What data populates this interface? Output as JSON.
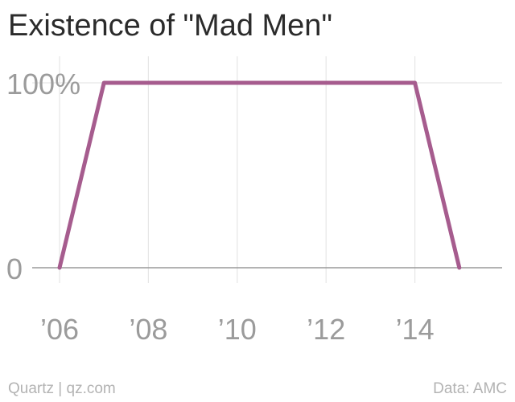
{
  "chart_data": {
    "type": "line",
    "title": "Existence of \"Mad Men\"",
    "xlabel": "",
    "ylabel": "",
    "x": [
      2006,
      2007,
      2014,
      2015
    ],
    "series": [
      {
        "values": [
          0,
          100,
          100,
          0
        ]
      }
    ],
    "xlim": [
      2006,
      2016
    ],
    "ylim": [
      0,
      100
    ],
    "x_ticks": [
      2006,
      2008,
      2010,
      2012,
      2014
    ],
    "x_tick_labels": [
      "’06",
      "’08",
      "’10",
      "’12",
      "’14"
    ],
    "y_ticks": [
      0,
      100
    ],
    "y_tick_labels": [
      "0",
      "100%"
    ],
    "grid": true,
    "legend": "none"
  },
  "footer": {
    "source_left": "Quartz | qz.com",
    "source_right": "Data: AMC"
  },
  "colors": {
    "line": "#a65c8e",
    "grid": "#e6e6e6",
    "baseline": "#9a9a9a",
    "tick_label": "#9b9b9b",
    "title": "#2b2b2b",
    "footer": "#b3b3b3"
  }
}
